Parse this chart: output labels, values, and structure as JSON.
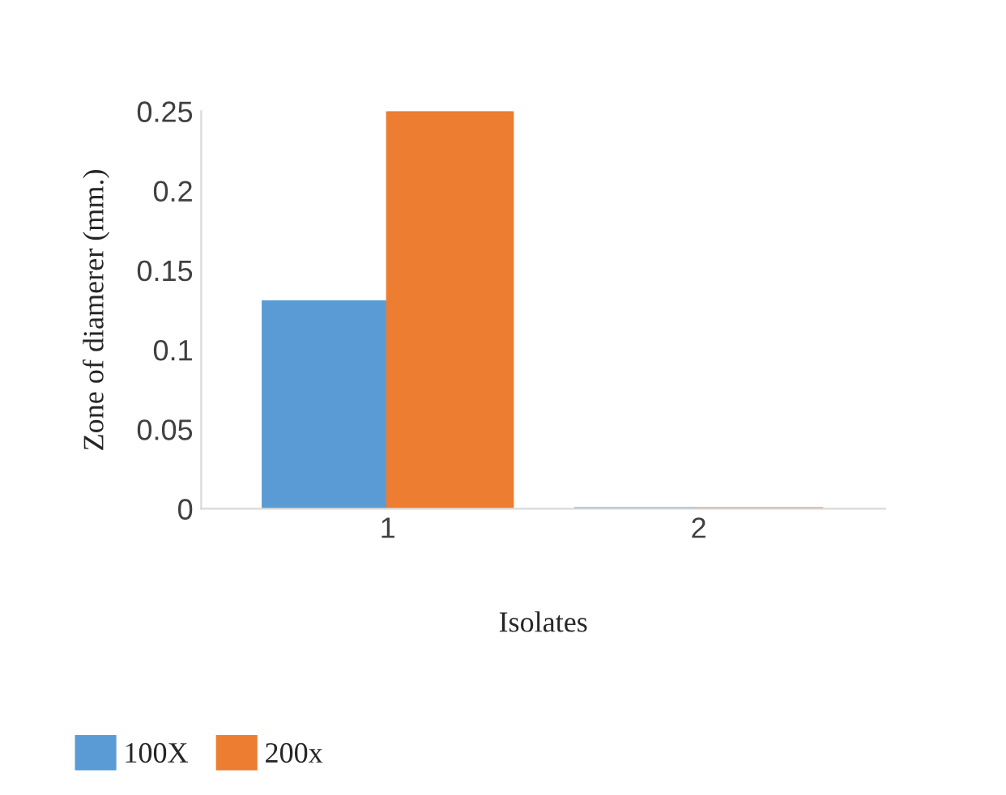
{
  "chart_data": {
    "type": "bar",
    "xlabel": "Isolates",
    "ylabel": "Zone of diamerer (mm.)",
    "categories": [
      "1",
      "2"
    ],
    "series": [
      {
        "name": "100X",
        "color": "#5b9bd5",
        "values": [
          0.13,
          0
        ]
      },
      {
        "name": "200x",
        "color": "#ed7d31",
        "values": [
          0.25,
          0
        ]
      }
    ],
    "ylim": [
      0,
      0.25
    ],
    "yticks": [
      0,
      0.05,
      0.1,
      0.15,
      0.2,
      0.25
    ],
    "grid": false,
    "legend": "bottom"
  }
}
